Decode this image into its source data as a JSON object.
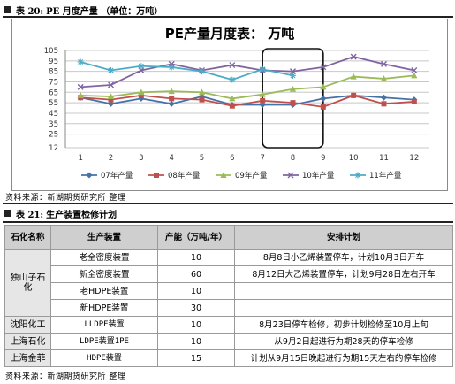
{
  "caption1": {
    "label": "表 20:",
    "title": "PE 月度产量 （单位：万吨）"
  },
  "caption2": {
    "label": "表 21:",
    "title": "生产装置检修计划"
  },
  "source_note": "资料来源：新湖期货研究所 整理",
  "chart_data": {
    "type": "line",
    "title": "PE产量月度表： 万吨",
    "categories": [
      "1",
      "2",
      "3",
      "4",
      "5",
      "6",
      "7",
      "8",
      "9",
      "10",
      "11",
      "12"
    ],
    "ylim": [
      12,
      105
    ],
    "yticks": [
      12,
      25,
      35,
      45,
      55,
      65,
      75,
      85,
      95,
      105
    ],
    "grid": true,
    "legend_position": "bottom",
    "highlight_months": [
      "7",
      "9"
    ],
    "series": [
      {
        "name": "07年产量",
        "color": "#4572A7",
        "marker": "diamond",
        "values": [
          60,
          54,
          59,
          54,
          61,
          53,
          53,
          53,
          59,
          62,
          60,
          58
        ]
      },
      {
        "name": "08年产量",
        "color": "#C0504D",
        "marker": "square",
        "values": [
          60,
          58,
          62,
          59,
          58,
          52,
          57,
          55,
          51,
          62,
          54,
          56
        ]
      },
      {
        "name": "09年产量",
        "color": "#9BBB59",
        "marker": "triangle",
        "values": [
          62,
          61,
          65,
          66,
          65,
          59,
          63,
          68,
          70,
          80,
          78,
          81
        ]
      },
      {
        "name": "10年产量",
        "color": "#8064A2",
        "marker": "x",
        "values": [
          70,
          72,
          86,
          92,
          86,
          91,
          86,
          85,
          89,
          99,
          92,
          86
        ]
      },
      {
        "name": "11年产量",
        "color": "#4BACC6",
        "marker": "star",
        "values": [
          94,
          86,
          90,
          89,
          85,
          77,
          87,
          81,
          null,
          null,
          null,
          null
        ]
      }
    ]
  },
  "table": {
    "headers": [
      "石化名称",
      "生产装置",
      "产能（万吨/年）",
      "安排计划"
    ],
    "plants": [
      {
        "name": "独山子石化",
        "rows": [
          {
            "device": "老全密度装置",
            "capacity": "10",
            "plan": "8月8日小乙烯装置停车，计划10月3日开车"
          },
          {
            "device": "新全密度装置",
            "capacity": "60",
            "plan": "8月12日大乙烯装置停车，计划9月28日左右开车"
          },
          {
            "device": "老HDPE装置",
            "capacity": "10",
            "plan": ""
          },
          {
            "device": "新HDPE装置",
            "capacity": "30",
            "plan": ""
          }
        ]
      },
      {
        "name": "沈阳化工",
        "rows": [
          {
            "device": "LLDPE装置",
            "capacity": "10",
            "plan": "8月23日停车检修，初步计划检修至10月上旬"
          }
        ]
      },
      {
        "name": "上海石化",
        "rows": [
          {
            "device": "LDPE装置1PE",
            "capacity": "10",
            "plan": "从9月2日起进行为期28天的停车检修"
          }
        ]
      },
      {
        "name": "上海金菲",
        "rows": [
          {
            "device": "HDPE装置",
            "capacity": "15",
            "plan": "计划从9月15日晚起进行为期15天左右的停车检修"
          }
        ]
      }
    ]
  }
}
